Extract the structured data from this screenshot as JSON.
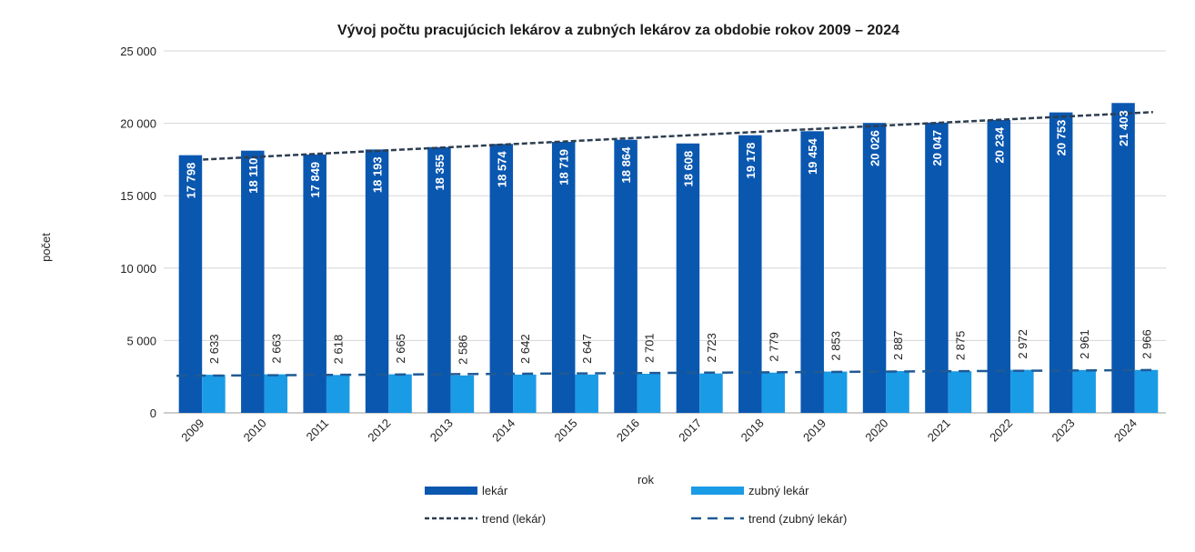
{
  "chart_data": {
    "type": "bar",
    "title": "Vývoj počtu pracujúcich lekárov a zubných lekárov za obdobie rokov 2009 – 2024",
    "xlabel": "rok",
    "ylabel": "počet",
    "ylim": [
      0,
      25000
    ],
    "yticks": [
      0,
      5000,
      10000,
      15000,
      20000,
      25000
    ],
    "ytick_labels": [
      "0",
      "5 000",
      "10 000",
      "15 000",
      "20 000",
      "25 000"
    ],
    "grid": true,
    "legend_position": "bottom",
    "categories": [
      "2009",
      "2010",
      "2011",
      "2012",
      "2013",
      "2014",
      "2015",
      "2016",
      "2017",
      "2018",
      "2019",
      "2020",
      "2021",
      "2022",
      "2023",
      "2024"
    ],
    "series": [
      {
        "name": "lekár",
        "color": "#0a57b0",
        "values": [
          17798,
          18110,
          17849,
          18193,
          18355,
          18574,
          18719,
          18864,
          18608,
          19178,
          19454,
          20026,
          20047,
          20234,
          20753,
          21403
        ],
        "labels": [
          "17 798",
          "18 110",
          "17 849",
          "18 193",
          "18 355",
          "18 574",
          "18 719",
          "18 864",
          "18 608",
          "19 178",
          "19 454",
          "20 026",
          "20 047",
          "20 234",
          "20 753",
          "21 403"
        ]
      },
      {
        "name": "zubný lekár",
        "color": "#1a9be6",
        "values": [
          2633,
          2663,
          2618,
          2665,
          2586,
          2642,
          2647,
          2701,
          2723,
          2779,
          2853,
          2887,
          2875,
          2972,
          2961,
          2966
        ],
        "labels": [
          "2 633",
          "2 663",
          "2 618",
          "2 665",
          "2 586",
          "2 642",
          "2 647",
          "2 701",
          "2 723",
          "2 779",
          "2 853",
          "2 887",
          "2 875",
          "2 972",
          "2 961",
          "2 966"
        ]
      }
    ],
    "trendlines": [
      {
        "name": "trend (lekár)",
        "of": "lekár",
        "type": "linear",
        "color": "#2d3e50"
      },
      {
        "name": "trend (zubný lekár)",
        "of": "zubný lekár",
        "type": "linear",
        "color": "#1f5a94"
      }
    ]
  }
}
